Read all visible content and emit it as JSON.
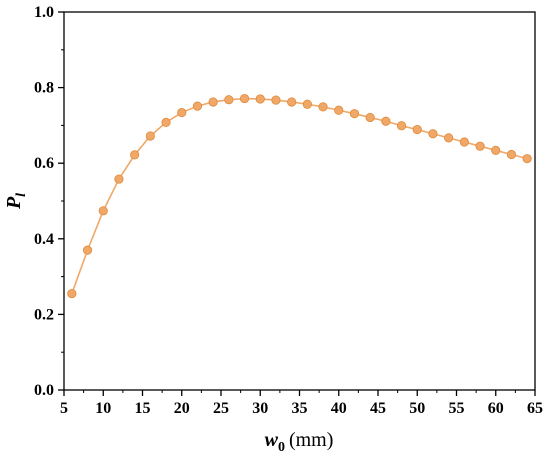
{
  "chart_data": {
    "type": "line",
    "xlabel": {
      "main": "w",
      "sub": "0",
      "unit": "(mm)"
    },
    "ylabel": {
      "main": "P",
      "sub": "l"
    },
    "xlim": [
      5,
      65
    ],
    "ylim": [
      0.0,
      1.0
    ],
    "x_ticks": [
      "5",
      "10",
      "15",
      "20",
      "25",
      "30",
      "35",
      "40",
      "45",
      "50",
      "55",
      "60",
      "65"
    ],
    "y_ticks": [
      "0.0",
      "0.2",
      "0.4",
      "0.6",
      "0.8",
      "1.0"
    ],
    "grid": false,
    "legend": "none",
    "series": [
      {
        "color": "#f0a868",
        "marker": "circle",
        "x": [
          6,
          8,
          10,
          12,
          14,
          16,
          18,
          20,
          22,
          24,
          26,
          28,
          30,
          32,
          34,
          36,
          38,
          40,
          42,
          44,
          46,
          48,
          50,
          52,
          54,
          56,
          58,
          60,
          62,
          64
        ],
        "y": [
          0.255,
          0.37,
          0.474,
          0.558,
          0.622,
          0.672,
          0.708,
          0.734,
          0.751,
          0.762,
          0.768,
          0.771,
          0.77,
          0.767,
          0.762,
          0.756,
          0.749,
          0.74,
          0.731,
          0.721,
          0.711,
          0.699,
          0.689,
          0.678,
          0.667,
          0.656,
          0.645,
          0.634,
          0.623,
          0.612
        ]
      }
    ]
  }
}
